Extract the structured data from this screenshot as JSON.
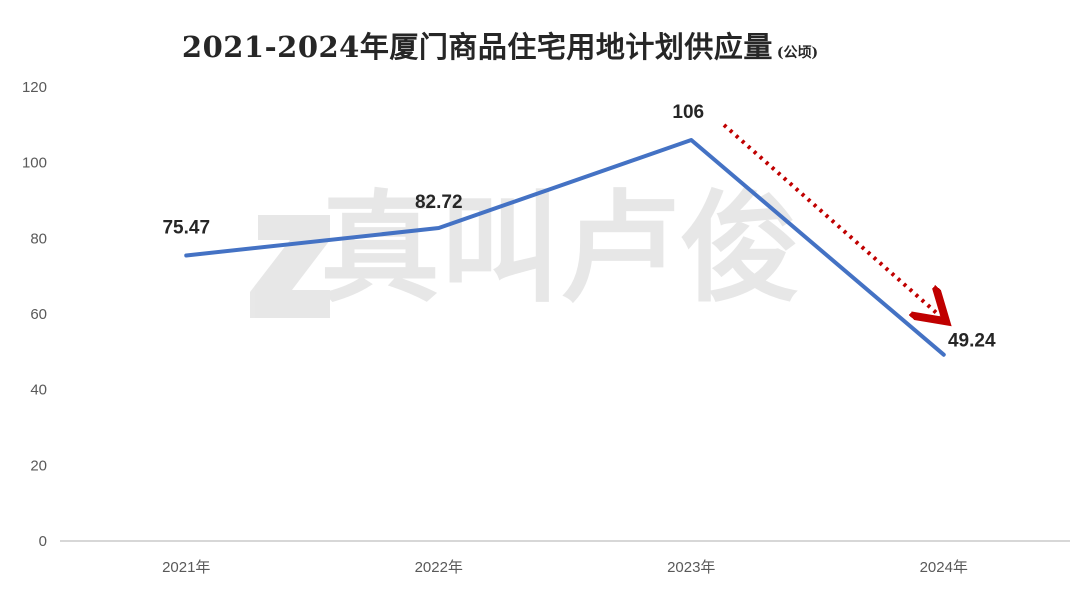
{
  "chart_data": {
    "type": "line",
    "title": "2021-2024年厦门商品住宅用地计划供应量",
    "unit": "(公顷)",
    "categories": [
      "2021年",
      "2022年",
      "2023年",
      "2024年"
    ],
    "series": [
      {
        "values": [
          75.47,
          82.72,
          106,
          49.24
        ],
        "data_labels": [
          "75.47",
          "82.72",
          "106",
          "49.24"
        ],
        "color": "#4472C4"
      }
    ],
    "y_ticks": [
      "0",
      "20",
      "40",
      "60",
      "80",
      "100",
      "120"
    ],
    "ylim": [
      0,
      120
    ],
    "grid": false,
    "legend": "none",
    "annotation": {
      "type": "dotted-arrow",
      "color": "#C00000",
      "direction": "down-right"
    },
    "watermark": "真叫卢俊"
  }
}
